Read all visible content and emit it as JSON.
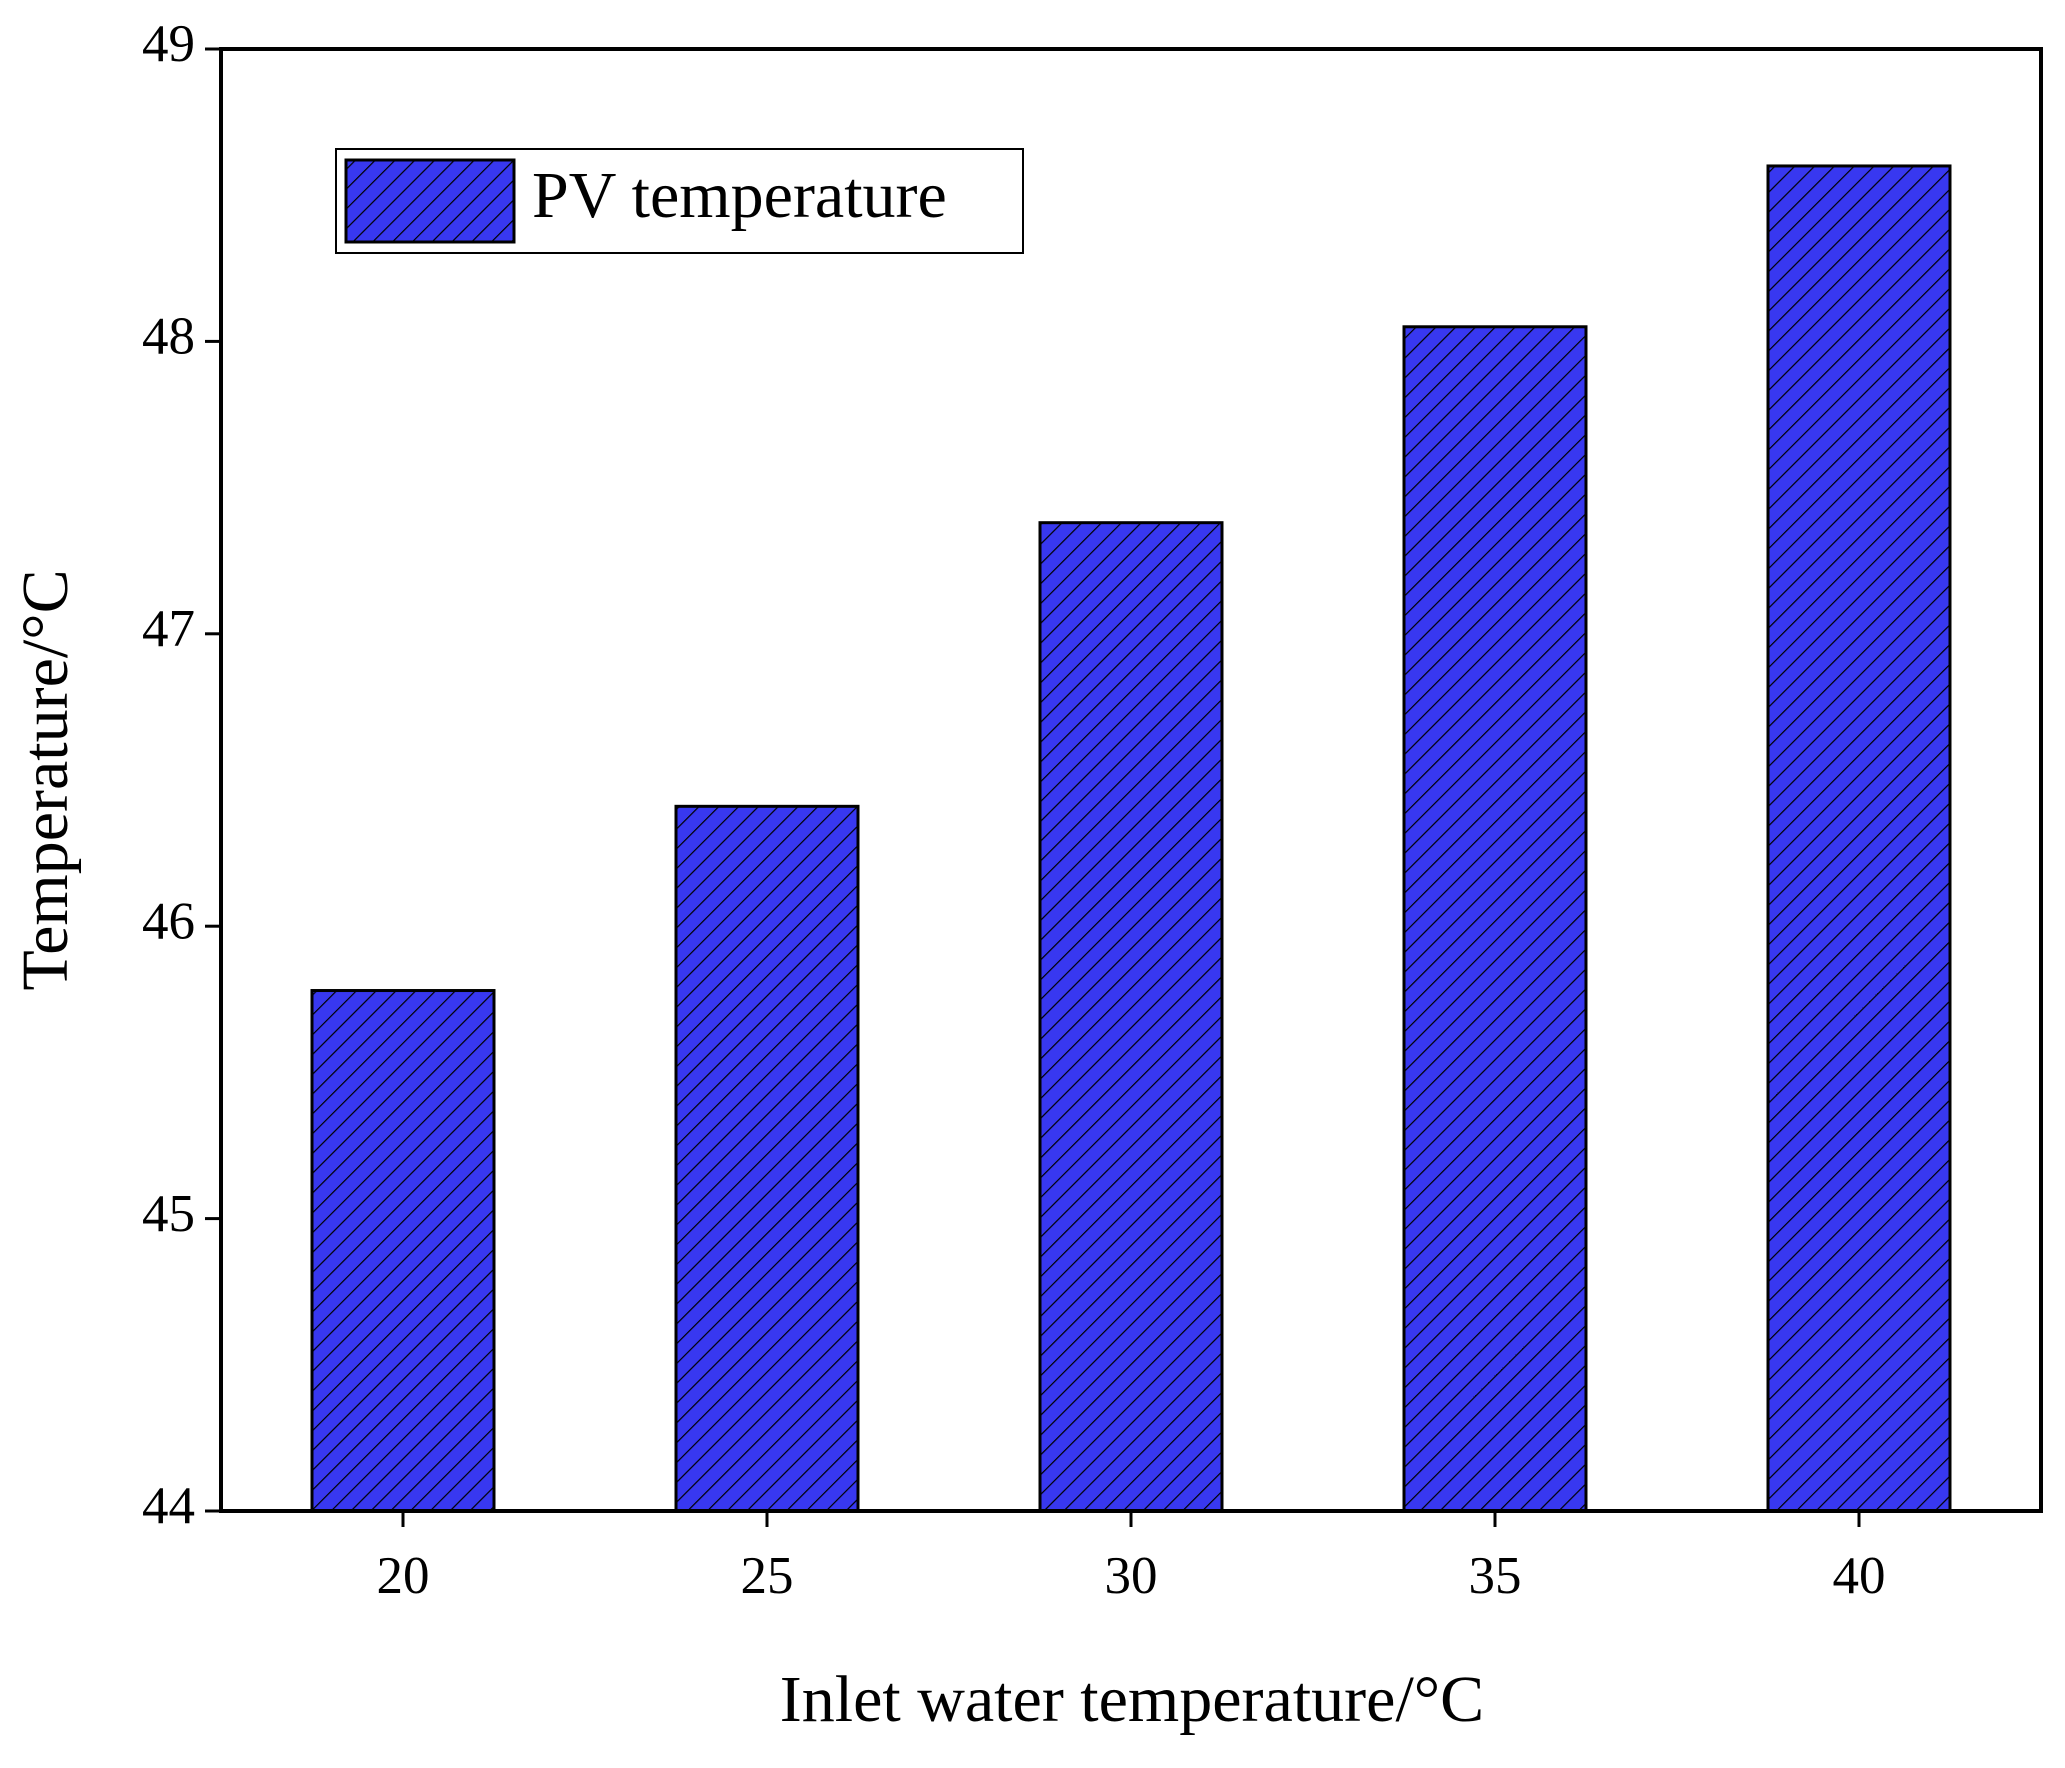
{
  "chart_data": {
    "type": "bar",
    "x_label": "Inlet water temperature/°C",
    "y_label": "Temperature/°C",
    "categories": [
      "20",
      "25",
      "30",
      "35",
      "40"
    ],
    "series": [
      {
        "name": "PV temperature",
        "color": "#3838f0",
        "values": [
          45.78,
          46.41,
          47.38,
          48.05,
          48.6
        ]
      }
    ],
    "ylim": [
      44,
      49
    ],
    "yticks": [
      44,
      45,
      46,
      47,
      48,
      49
    ],
    "legend": "upper-left",
    "hatch": true
  }
}
